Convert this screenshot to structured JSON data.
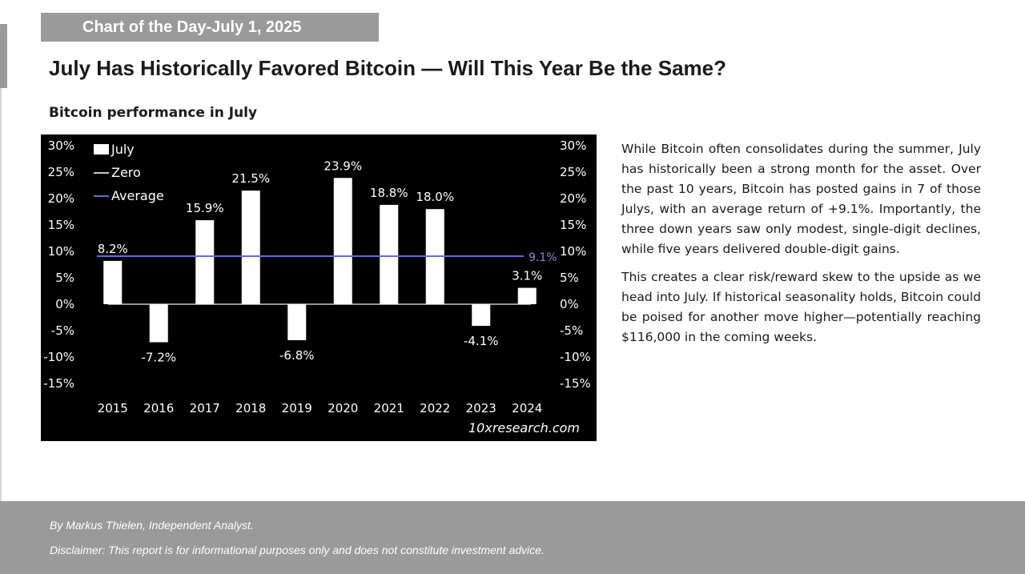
{
  "header": {
    "tag": "Chart of the Day-July 1, 2025",
    "title": "July Has Historically Favored Bitcoin — Will This Year Be the Same?",
    "subtitle": "Bitcoin performance in July"
  },
  "chart_data": {
    "type": "bar",
    "title": "Bitcoin performance in July",
    "categories": [
      "2015",
      "2016",
      "2017",
      "2018",
      "2019",
      "2020",
      "2021",
      "2022",
      "2023",
      "2024"
    ],
    "values": [
      8.2,
      -7.2,
      15.9,
      21.5,
      -6.8,
      23.9,
      18.8,
      18.0,
      -4.1,
      3.1
    ],
    "data_labels": [
      "8.2%",
      "-7.2%",
      "15.9%",
      "21.5%",
      "-6.8%",
      "23.9%",
      "18.8%",
      "18.0%",
      "-4.1%",
      "3.1%"
    ],
    "average": 9.1,
    "average_label": "9.1%",
    "ylim": [
      -15,
      30
    ],
    "yticks": [
      "30%",
      "25%",
      "20%",
      "15%",
      "10%",
      "5%",
      "0%",
      "-5%",
      "-10%",
      "-15%"
    ],
    "ytick_values": [
      30,
      25,
      20,
      15,
      10,
      5,
      0,
      -5,
      -10,
      -15
    ],
    "legend": [
      "July",
      "Zero",
      "Average"
    ],
    "legend_position": "top-left",
    "source": "10xresearch.com",
    "colors": {
      "background": "#000000",
      "bar": "#ffffff",
      "zero": "#c8c8c8",
      "average": "#6b6bd6",
      "average_label": "#8a8ae6",
      "text": "#ffffff"
    }
  },
  "body": {
    "p1": "While Bitcoin often consolidates during the summer, July has historically been a strong month for the asset. Over the past 10 years, Bitcoin has posted gains in 7 of those Julys, with an average return of +9.1%. Importantly, the three down years saw only modest, single-digit declines, while five years delivered double-digit gains.",
    "p2": "This creates a clear risk/reward skew to the upside as we head into July. If historical seasonality holds, Bitcoin could be poised for another move higher—potentially reaching $116,000 in the coming weeks."
  },
  "footer": {
    "author": "By Markus Thielen, Independent Analyst.",
    "disclaimer": "Disclaimer: This report is for informational purposes only and does not constitute investment advice."
  }
}
